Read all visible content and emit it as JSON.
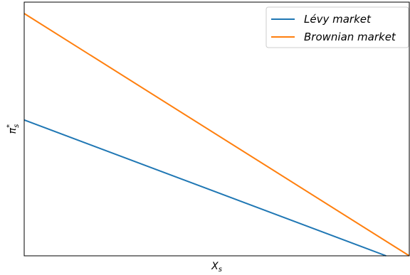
{
  "chart_data": {
    "type": "line",
    "xlabel": "X",
    "xlabel_sub": "s",
    "ylabel": "π",
    "ylabel_sup": "*",
    "ylabel_sub": "s",
    "xlim": [
      0,
      1
    ],
    "ylim": [
      0,
      1
    ],
    "grid": false,
    "ticks_shown": false,
    "legend_position": "top-right",
    "series": [
      {
        "name": "Lévy market",
        "color": "#1f77b4",
        "x": [
          0,
          0.9397
        ],
        "y": [
          0.5356,
          0
        ]
      },
      {
        "name": "Brownian market",
        "color": "#ff7f0e",
        "x": [
          0,
          1.0
        ],
        "y": [
          0.9552,
          0
        ]
      }
    ]
  }
}
